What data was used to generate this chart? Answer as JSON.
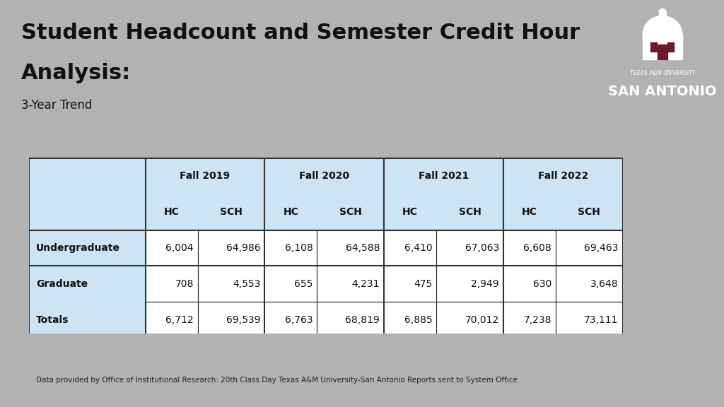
{
  "title_line1": "Student Headcount and Semester Credit Hour",
  "title_line2": "Analysis:",
  "subtitle": "3-Year Trend",
  "footer": "Data provided by Office of Institutional Research: 20th Class Day Texas A&M University-San Antonio Reports sent to System Office",
  "bg_color": "#b2b2b2",
  "header_bg": "#ffffff",
  "table_header_color": "#cde4f5",
  "table_border_color": "#333333",
  "brand_color": "#6b1a2a",
  "col_groups": [
    "Fall 2019",
    "Fall 2020",
    "Fall 2021",
    "Fall 2022"
  ],
  "sub_cols": [
    "HC",
    "SCH"
  ],
  "row_labels": [
    "Undergraduate",
    "Graduate",
    "Totals"
  ],
  "data": [
    [
      "6,004",
      "64,986",
      "6,108",
      "64,588",
      "6,410",
      "67,063",
      "6,608",
      "69,463"
    ],
    [
      "708",
      "4,553",
      "655",
      "4,231",
      "475",
      "2,949",
      "630",
      "3,648"
    ],
    [
      "6,712",
      "69,539",
      "6,763",
      "68,819",
      "6,885",
      "70,012",
      "7,238",
      "73,111"
    ]
  ]
}
